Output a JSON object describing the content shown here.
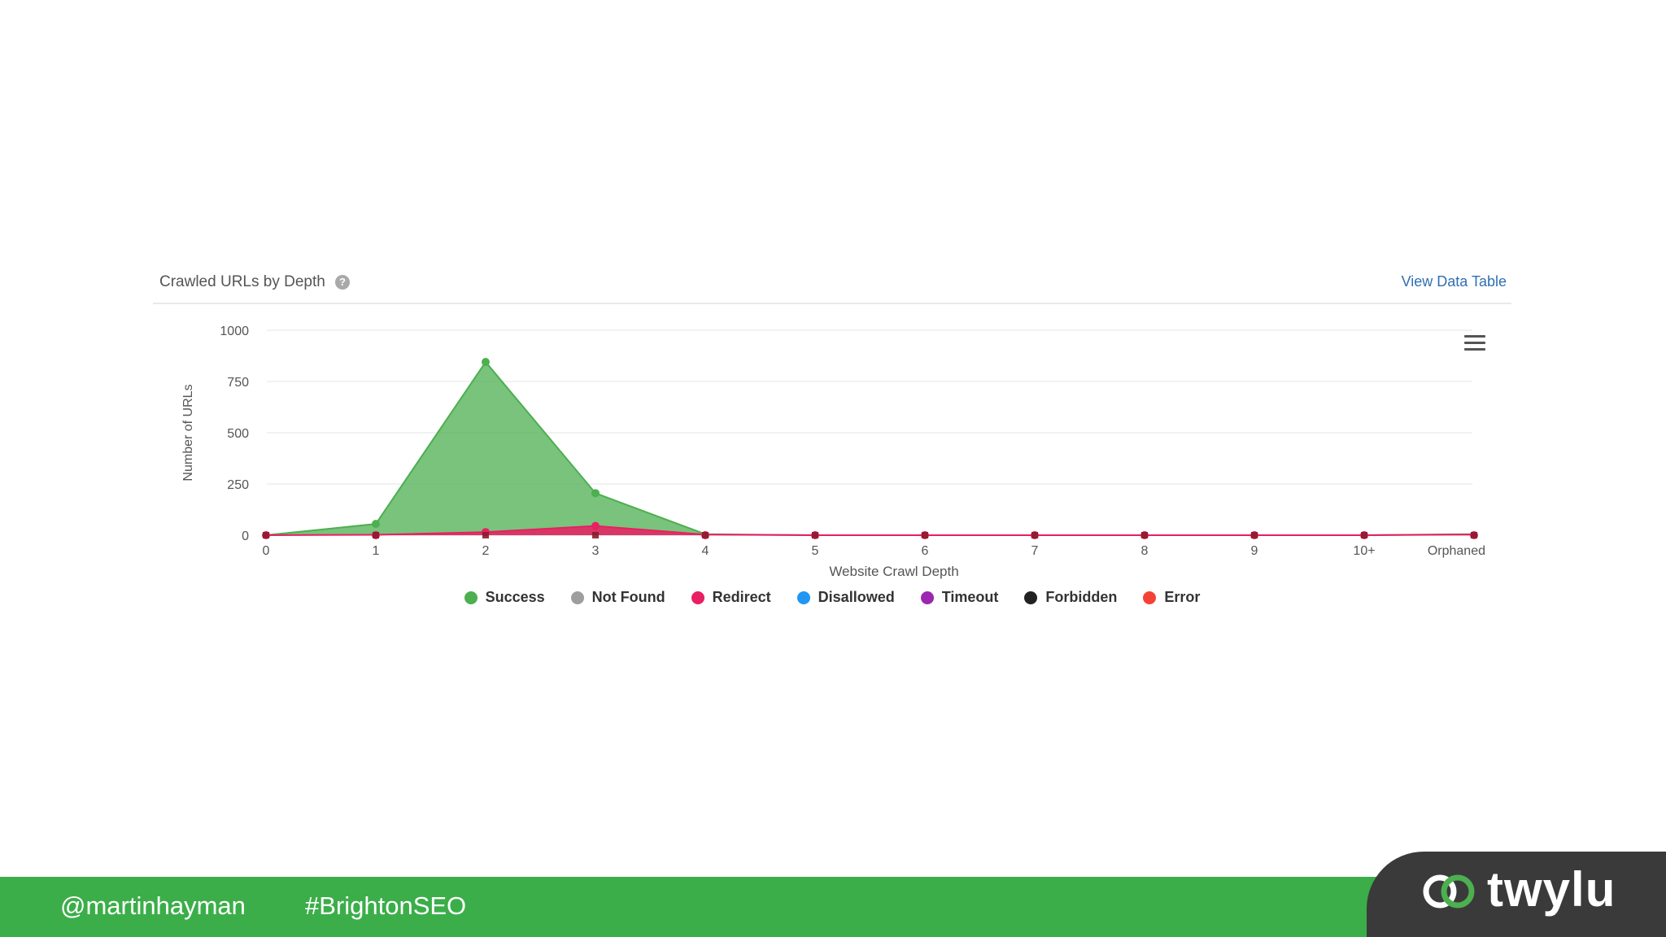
{
  "header": {
    "title": "Crawled URLs by Depth",
    "help_glyph": "?",
    "view_data_link": "View Data Table"
  },
  "chart_data": {
    "type": "area",
    "title": "Crawled URLs by Depth",
    "xlabel": "Website Crawl Depth",
    "ylabel": "Number of URLs",
    "categories": [
      "0",
      "1",
      "2",
      "3",
      "4",
      "5",
      "6",
      "7",
      "8",
      "9",
      "10+",
      "Orphaned"
    ],
    "yticks": [
      "0",
      "250",
      "500",
      "750",
      "1000"
    ],
    "ylim": [
      0,
      1000
    ],
    "grid": true,
    "legend_position": "bottom-center",
    "series": [
      {
        "name": "Success",
        "color": "#4caf50",
        "values": [
          0,
          55,
          845,
          205,
          5,
          0,
          0,
          0,
          0,
          0,
          0,
          5
        ]
      },
      {
        "name": "Not Found",
        "color": "#9e9e9e",
        "values": [
          0,
          0,
          0,
          0,
          0,
          0,
          0,
          0,
          0,
          0,
          0,
          0
        ]
      },
      {
        "name": "Redirect",
        "color": "#e91e63",
        "values": [
          0,
          2,
          15,
          45,
          3,
          0,
          0,
          0,
          0,
          0,
          0,
          3
        ]
      },
      {
        "name": "Disallowed",
        "color": "#2196f3",
        "values": [
          0,
          0,
          0,
          0,
          0,
          0,
          0,
          0,
          0,
          0,
          0,
          0
        ]
      },
      {
        "name": "Timeout",
        "color": "#9c27b0",
        "values": [
          0,
          0,
          0,
          0,
          0,
          0,
          0,
          0,
          0,
          0,
          0,
          0
        ]
      },
      {
        "name": "Forbidden",
        "color": "#222222",
        "values": [
          0,
          0,
          0,
          0,
          0,
          0,
          0,
          0,
          0,
          0,
          0,
          0
        ]
      },
      {
        "name": "Error",
        "color": "#f44336",
        "values": [
          0,
          0,
          0,
          0,
          0,
          0,
          0,
          0,
          0,
          0,
          0,
          0
        ]
      }
    ]
  },
  "menu_icon": "hamburger-menu-icon",
  "footer": {
    "twitter_handle": "@martinhayman",
    "hashtag": "#BrightonSEO",
    "color": "#3bae49"
  },
  "brand": {
    "name": "twylu",
    "logo_icon": "linked-rings-icon"
  }
}
